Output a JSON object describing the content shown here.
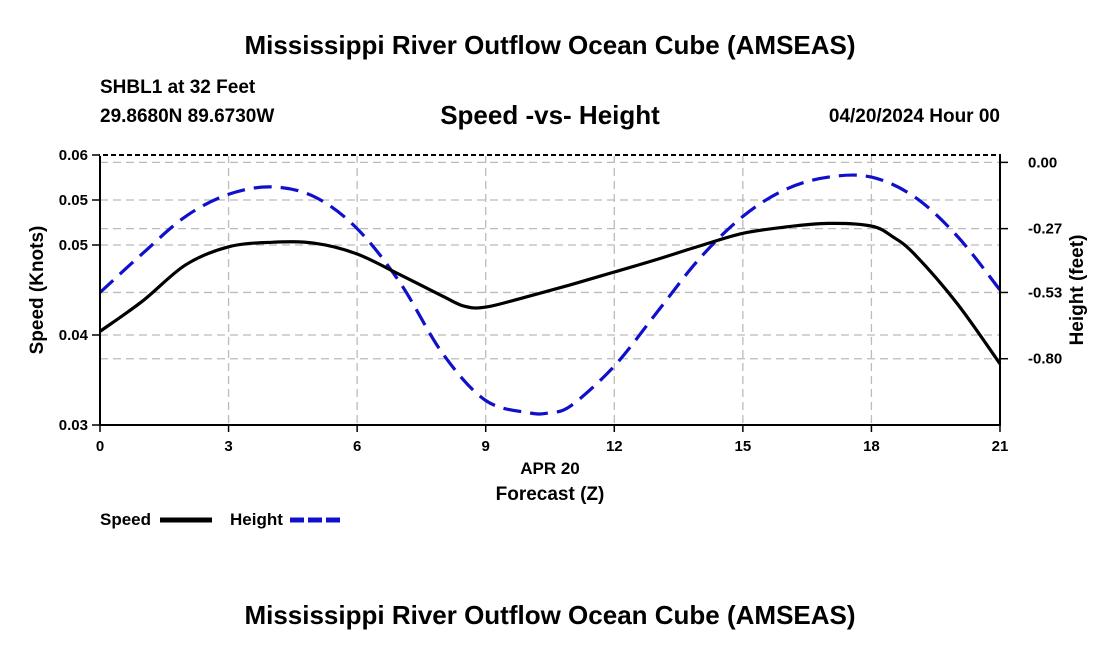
{
  "header": {
    "title": "Mississippi River Outflow Ocean Cube (AMSEAS)",
    "station": "SHBL1 at 32 Feet",
    "coords": "29.8680N  89.6730W",
    "date": "04/20/2024 Hour 00"
  },
  "footer": {
    "title": "Mississippi River Outflow Ocean Cube (AMSEAS)"
  },
  "chart_data": {
    "type": "line",
    "title": "Speed -vs- Height",
    "xlabel": "Forecast (Z)",
    "xsublabel": "APR 20",
    "ylabel": "Speed (Knots)",
    "y2label": "Height (feet)",
    "xlim": [
      0,
      21
    ],
    "ylim": [
      0.03,
      0.06
    ],
    "y2lim": [
      -1.07,
      0.03
    ],
    "xticks": [
      "0",
      "3",
      "6",
      "9",
      "12",
      "15",
      "18",
      "21"
    ],
    "yticks": [
      "0.03",
      "0.04",
      "0.05",
      "0.05",
      "0.06"
    ],
    "y2ticks": [
      "0.00",
      "-0.27",
      "-0.53",
      "-0.80"
    ],
    "legend": [
      "Speed",
      "Height"
    ],
    "colors": {
      "speed": "#000000",
      "height": "#1010cc",
      "grid": "#bbbbbb"
    },
    "series": [
      {
        "name": "Speed",
        "x": [
          0,
          1,
          2,
          3,
          4,
          5,
          6,
          7,
          8,
          8.5,
          9,
          10,
          11,
          12,
          13,
          14,
          15,
          16,
          17,
          18,
          18.5,
          19,
          20,
          21
        ],
        "values": [
          0.0404,
          0.0438,
          0.0478,
          0.0498,
          0.0503,
          0.0502,
          0.049,
          0.0467,
          0.0443,
          0.0432,
          0.0431,
          0.0443,
          0.0456,
          0.047,
          0.0484,
          0.0499,
          0.0513,
          0.052,
          0.0524,
          0.0521,
          0.0509,
          0.049,
          0.0435,
          0.0368
        ]
      },
      {
        "name": "Height",
        "x": [
          0,
          1,
          2,
          3,
          4,
          5,
          6,
          7,
          8,
          9,
          10,
          10.5,
          11,
          12,
          13,
          14,
          15,
          16,
          17,
          18,
          19,
          20,
          21
        ],
        "values": [
          -0.53,
          -0.37,
          -0.22,
          -0.13,
          -0.1,
          -0.14,
          -0.27,
          -0.49,
          -0.78,
          -0.97,
          -1.02,
          -1.02,
          -0.99,
          -0.83,
          -0.61,
          -0.39,
          -0.22,
          -0.11,
          -0.06,
          -0.06,
          -0.14,
          -0.3,
          -0.52
        ]
      }
    ]
  }
}
